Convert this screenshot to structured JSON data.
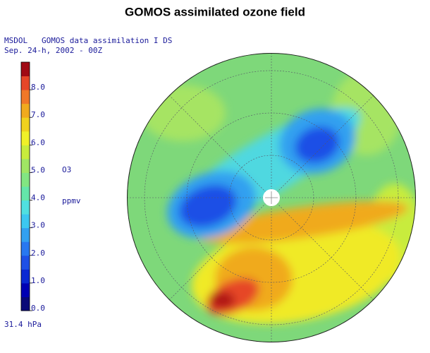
{
  "title": "GOMOS assimilated ozone field",
  "header": [
    "MSDOL   GOMOS data assimilation I DS",
    "Sep. 24-h, 2002 - 00Z"
  ],
  "colorbar": {
    "ylim": [
      0,
      9
    ],
    "yticks": [
      {
        "value": 0,
        "label": "0.0"
      },
      {
        "value": 1,
        "label": "1.0"
      },
      {
        "value": 2,
        "label": "2.0"
      },
      {
        "value": 3,
        "label": "3.0"
      },
      {
        "value": 4,
        "label": "4.0"
      },
      {
        "value": 5,
        "label": "5.0"
      },
      {
        "value": 6,
        "label": "6.0"
      },
      {
        "value": 7,
        "label": "7.0"
      },
      {
        "value": 8,
        "label": "8.0"
      }
    ],
    "colors": [
      "#0a0a78",
      "#0000b4",
      "#0a28d2",
      "#1e50e6",
      "#2878f0",
      "#32a0f0",
      "#3cc8f0",
      "#50e0e0",
      "#64e6aa",
      "#82e682",
      "#a0e664",
      "#c8ec3c",
      "#f0f028",
      "#f0d21e",
      "#f0aa1e",
      "#f07828",
      "#e64628",
      "#a00a14"
    ]
  },
  "variable": "O3",
  "unit": "ppmv",
  "level": "31.4 hPa"
}
